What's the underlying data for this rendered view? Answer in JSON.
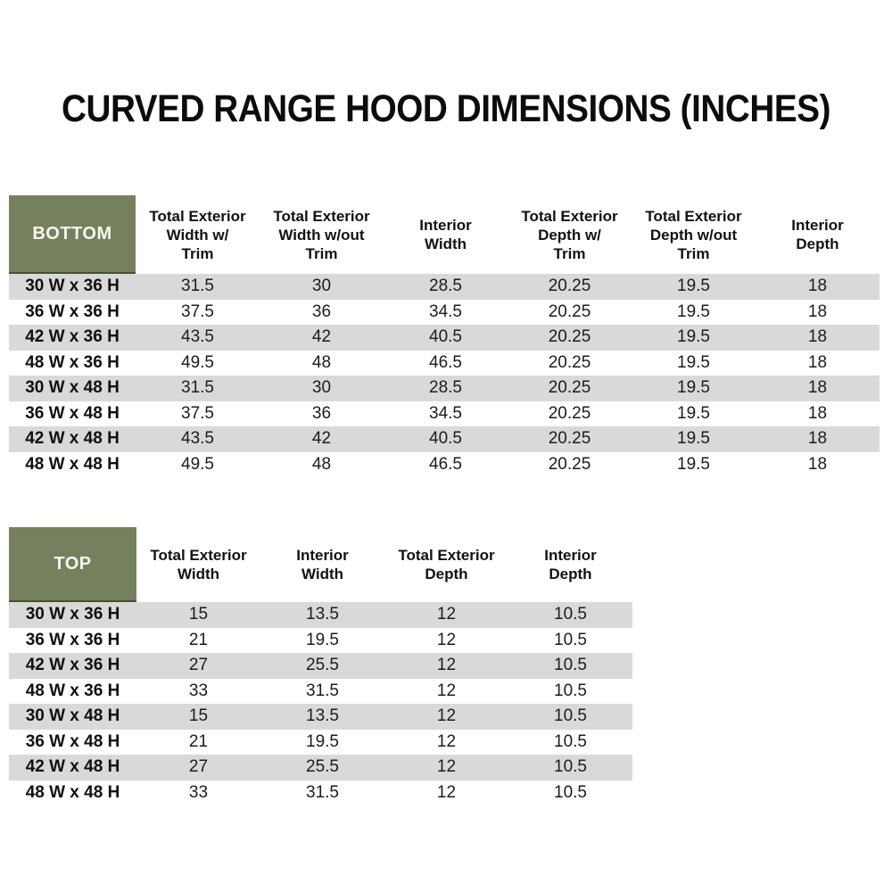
{
  "page": {
    "title": "CURVED RANGE HOOD DIMENSIONS (INCHES)"
  },
  "colors": {
    "corner_green": "#75815e",
    "corner_green_border": "#454e37",
    "stripe_gray": "#d9d9d9",
    "row_white": "#ffffff",
    "text_dark": "#1c1c1c"
  },
  "tables": [
    {
      "corner_label": "BOTTOM",
      "columns": [
        "Total Exterior\nWidth w/\nTrim",
        "Total Exterior\nWidth w/out\nTrim",
        "Interior\nWidth",
        "Total Exterior\nDepth w/\nTrim",
        "Total Exterior\nDepth w/out\nTrim",
        "Interior\nDepth"
      ],
      "rows": [
        {
          "label": "30 W x 36 H",
          "values": [
            "31.5",
            "30",
            "28.5",
            "20.25",
            "19.5",
            "18"
          ]
        },
        {
          "label": "36 W x 36 H",
          "values": [
            "37.5",
            "36",
            "34.5",
            "20.25",
            "19.5",
            "18"
          ]
        },
        {
          "label": "42 W x 36 H",
          "values": [
            "43.5",
            "42",
            "40.5",
            "20.25",
            "19.5",
            "18"
          ]
        },
        {
          "label": "48 W x 36 H",
          "values": [
            "49.5",
            "48",
            "46.5",
            "20.25",
            "19.5",
            "18"
          ]
        },
        {
          "label": "30 W x 48 H",
          "values": [
            "31.5",
            "30",
            "28.5",
            "20.25",
            "19.5",
            "18"
          ]
        },
        {
          "label": "36 W x 48 H",
          "values": [
            "37.5",
            "36",
            "34.5",
            "20.25",
            "19.5",
            "18"
          ]
        },
        {
          "label": "42 W x 48 H",
          "values": [
            "43.5",
            "42",
            "40.5",
            "20.25",
            "19.5",
            "18"
          ]
        },
        {
          "label": "48 W x 48 H",
          "values": [
            "49.5",
            "48",
            "46.5",
            "20.25",
            "19.5",
            "18"
          ]
        }
      ]
    },
    {
      "corner_label": "TOP",
      "columns": [
        "Total Exterior\nWidth",
        "Interior\nWidth",
        "Total Exterior\nDepth",
        "Interior\nDepth"
      ],
      "rows": [
        {
          "label": "30 W x 36 H",
          "values": [
            "15",
            "13.5",
            "12",
            "10.5"
          ]
        },
        {
          "label": "36 W x 36 H",
          "values": [
            "21",
            "19.5",
            "12",
            "10.5"
          ]
        },
        {
          "label": "42 W x 36 H",
          "values": [
            "27",
            "25.5",
            "12",
            "10.5"
          ]
        },
        {
          "label": "48 W x 36 H",
          "values": [
            "33",
            "31.5",
            "12",
            "10.5"
          ]
        },
        {
          "label": "30 W x 48 H",
          "values": [
            "15",
            "13.5",
            "12",
            "10.5"
          ]
        },
        {
          "label": "36 W x 48 H",
          "values": [
            "21",
            "19.5",
            "12",
            "10.5"
          ]
        },
        {
          "label": "42 W x 48 H",
          "values": [
            "27",
            "25.5",
            "12",
            "10.5"
          ]
        },
        {
          "label": "48 W x 48 H",
          "values": [
            "33",
            "31.5",
            "12",
            "10.5"
          ]
        }
      ]
    }
  ]
}
